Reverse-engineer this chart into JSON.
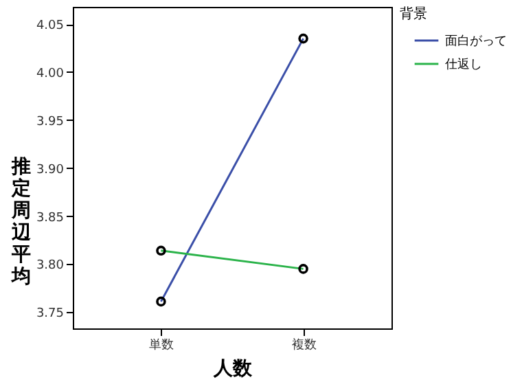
{
  "chart_data": {
    "type": "line",
    "xlabel": "人数",
    "ylabel": "推定周辺平均",
    "legend_title": "背景",
    "categories": [
      "単数",
      "複数"
    ],
    "series": [
      {
        "name": "面白がって",
        "color": "#3b4fa8",
        "values": [
          3.761,
          4.035
        ]
      },
      {
        "name": "仕返し",
        "color": "#2bb34a",
        "values": [
          3.814,
          3.795
        ]
      }
    ],
    "ylim": [
      3.733,
      4.068
    ],
    "yticks": [
      {
        "value": 3.75,
        "label": "3.75"
      },
      {
        "value": 3.8,
        "label": "3.80"
      },
      {
        "value": 3.85,
        "label": "3.85"
      },
      {
        "value": 3.9,
        "label": "3.90"
      },
      {
        "value": 3.95,
        "label": "3.95"
      },
      {
        "value": 4.0,
        "label": "4.00"
      },
      {
        "value": 4.05,
        "label": "4.05"
      }
    ],
    "grid": false,
    "legend": "top right",
    "marker": "circle",
    "line_style": "solid"
  }
}
